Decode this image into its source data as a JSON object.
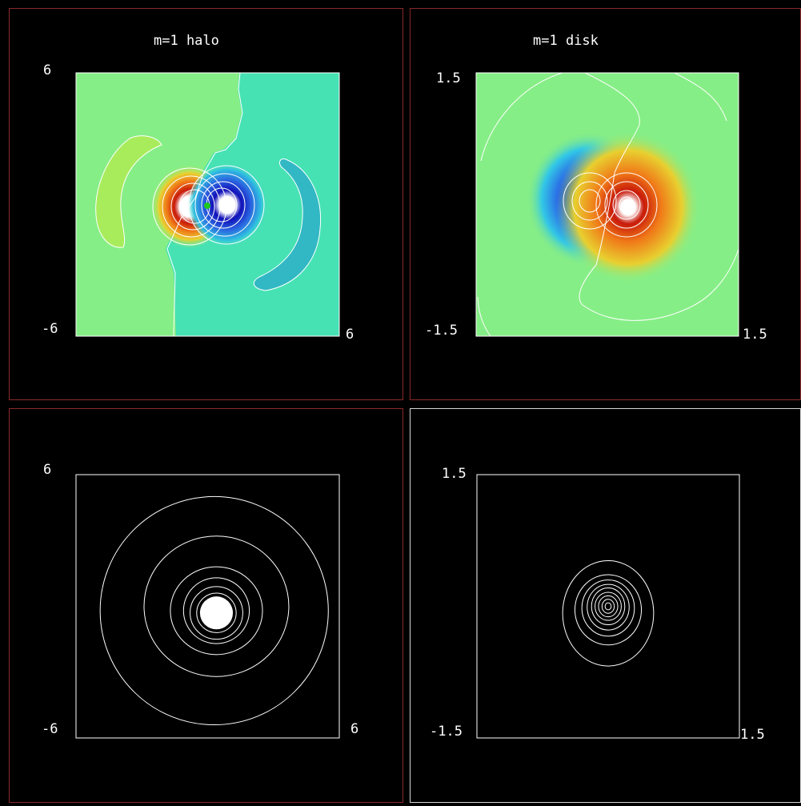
{
  "colors": {
    "background": "#000000",
    "panel_border_red": "#8a2a2a",
    "panel_border_white": "#d8d8d8",
    "contour": "#ffffff",
    "plot_frame": "#ffffff"
  },
  "chart_data": [
    {
      "type": "heatmap",
      "title": "m=1 halo",
      "xlim": [
        -6,
        6
      ],
      "ylim": [
        -6,
        6
      ],
      "tick_labels": {
        "y_top": "6",
        "y_bottom": "-6",
        "x_right": "6"
      },
      "colorscale": "jet",
      "features": [
        {
          "kind": "dipole",
          "pole": "positive",
          "x": -0.6,
          "y": 0.2
        },
        {
          "kind": "dipole",
          "pole": "negative",
          "x": 0.7,
          "y": 0.2
        },
        {
          "kind": "arc-lobe",
          "pole": "positive",
          "side": "left"
        },
        {
          "kind": "arc-lobe",
          "pole": "negative",
          "side": "right"
        }
      ]
    },
    {
      "type": "heatmap",
      "title": "m=1 disk",
      "xlim": [
        -1.5,
        1.5
      ],
      "ylim": [
        -1.5,
        1.5
      ],
      "tick_labels": {
        "y_top": "1.5",
        "y_bottom": "-1.5",
        "x_right": "1.5"
      },
      "colorscale": "jet",
      "features": [
        {
          "kind": "dipole",
          "pole": "negative",
          "x": -0.3,
          "y": 0.0
        },
        {
          "kind": "dipole",
          "pole": "positive",
          "x": 0.15,
          "y": -0.05
        }
      ]
    },
    {
      "type": "contour",
      "title": "",
      "xlim": [
        -6,
        6
      ],
      "ylim": [
        -6,
        6
      ],
      "tick_labels": {
        "y_top": "6",
        "y_bottom": "-6",
        "x_right": "6"
      },
      "rings": [
        {
          "cx": 0.3,
          "cy": -0.2,
          "rx": 5.2,
          "ry": 5.2
        },
        {
          "cx": 0.4,
          "cy": 0.0,
          "rx": 3.3,
          "ry": 3.2
        },
        {
          "cx": 0.4,
          "cy": -0.2,
          "rx": 2.1,
          "ry": 2.0
        },
        {
          "cx": 0.4,
          "cy": -0.2,
          "rx": 1.5,
          "ry": 1.5
        },
        {
          "cx": 0.4,
          "cy": -0.3,
          "rx": 1.2,
          "ry": 1.2
        },
        {
          "cx": 0.4,
          "cy": -0.3,
          "rx": 0.9,
          "ry": 0.9
        }
      ],
      "core": {
        "cx": 0.4,
        "cy": -0.3,
        "r": 0.75
      }
    },
    {
      "type": "contour",
      "title": "",
      "xlim": [
        -1.5,
        1.5
      ],
      "ylim": [
        -1.5,
        1.5
      ],
      "tick_labels": {
        "y_top": "1.5",
        "y_bottom": "-1.5",
        "x_right": "1.5"
      },
      "rings": [
        {
          "cx": 0.0,
          "cy": -0.08,
          "rx": 0.52,
          "ry": 0.6
        },
        {
          "cx": 0.0,
          "cy": -0.04,
          "rx": 0.38,
          "ry": 0.4
        },
        {
          "cx": 0.0,
          "cy": -0.02,
          "rx": 0.3,
          "ry": 0.32
        },
        {
          "cx": 0.0,
          "cy": -0.01,
          "rx": 0.24,
          "ry": 0.26
        },
        {
          "cx": 0.0,
          "cy": 0.0,
          "rx": 0.19,
          "ry": 0.21
        },
        {
          "cx": 0.0,
          "cy": 0.0,
          "rx": 0.15,
          "ry": 0.16
        },
        {
          "cx": 0.0,
          "cy": 0.0,
          "rx": 0.11,
          "ry": 0.12
        },
        {
          "cx": 0.0,
          "cy": 0.0,
          "rx": 0.07,
          "ry": 0.08
        },
        {
          "cx": 0.0,
          "cy": 0.0,
          "rx": 0.035,
          "ry": 0.04
        }
      ]
    }
  ]
}
